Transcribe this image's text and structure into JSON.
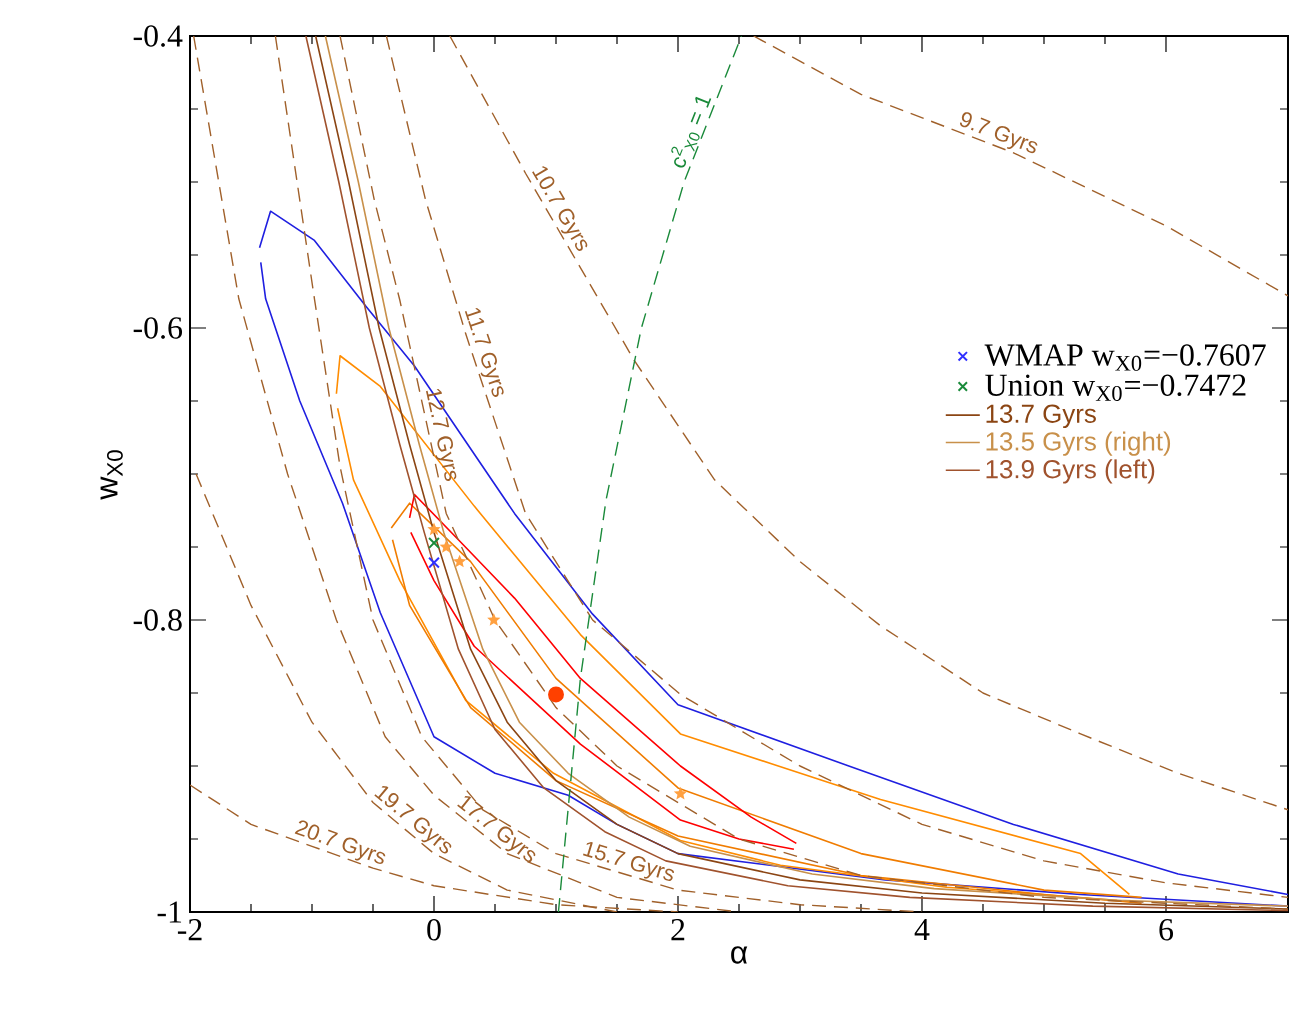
{
  "chart_data": {
    "type": "line",
    "xlabel": "α",
    "ylabel": "w$_{X0}$",
    "xlim": [
      -2,
      7
    ],
    "ylim": [
      -1,
      -0.4
    ],
    "xticks": [
      -2,
      0,
      2,
      4,
      6
    ],
    "yticks": [
      -1,
      -0.8,
      -0.6,
      -0.4
    ],
    "legend": "right",
    "line_style": "solid",
    "series": [
      {
        "type": "scatter",
        "marker": "cross",
        "name": "WMAP  w$_{X0}$=−0.7607",
        "color": "#3030ff",
        "x": [
          0
        ],
        "values": [
          -0.7607
        ]
      },
      {
        "type": "scatter",
        "marker": "cross",
        "name": "Union  w$_{X0}$=−0.7472",
        "color": "#1a8a3a",
        "x": [
          0
        ],
        "values": [
          -0.7472
        ]
      },
      {
        "color": "#1f1fe0",
        "x": [
          -1.43,
          -1.34,
          -0.98,
          -0.56,
          -0.16,
          0.66,
          1.3,
          2.0,
          3.4,
          4.75,
          6.1,
          7
        ],
        "values": [
          -0.545,
          -0.52,
          -0.54,
          -0.585,
          -0.626,
          -0.727,
          -0.796,
          -0.858,
          -0.9,
          -0.94,
          -0.974,
          -0.988
        ]
      },
      {
        "color": "#1f1fe0",
        "x": [
          -1.42,
          -1.38,
          -1.1,
          -0.75,
          -0.44,
          0,
          0.5,
          1.1,
          1.5,
          2.0,
          3.7,
          5.3,
          7
        ],
        "values": [
          -0.555,
          -0.58,
          -0.65,
          -0.72,
          -0.795,
          -0.88,
          -0.905,
          -0.92,
          -0.94,
          -0.96,
          -0.978,
          -0.988,
          -0.996
        ]
      },
      {
        "color": "#ff8c00",
        "x": [
          -0.8,
          -0.77,
          -0.44,
          0.33,
          1.2,
          2.02,
          3.66,
          5.3,
          5.7
        ],
        "values": [
          -0.645,
          -0.619,
          -0.64,
          -0.722,
          -0.81,
          -0.878,
          -0.923,
          -0.96,
          -0.988
        ]
      },
      {
        "color": "#ff8c00",
        "x": [
          -0.79,
          -0.66,
          -0.28,
          0.26,
          0.98,
          2.02,
          2.84,
          4.2,
          5.74
        ],
        "values": [
          -0.655,
          -0.704,
          -0.773,
          -0.855,
          -0.905,
          -0.951,
          -0.968,
          -0.983,
          -0.993
        ]
      },
      {
        "color": "#f07c00",
        "x": [
          -0.35,
          -0.2,
          0.3,
          1.0,
          2.0,
          3.5,
          5.0,
          5.8
        ],
        "values": [
          -0.737,
          -0.72,
          -0.76,
          -0.84,
          -0.915,
          -0.96,
          -0.985,
          -0.99
        ]
      },
      {
        "color": "#f07c00",
        "x": [
          -0.34,
          -0.2,
          0.3,
          1.0,
          2.0,
          3.5,
          5.0,
          5.8
        ],
        "values": [
          -0.745,
          -0.79,
          -0.86,
          -0.91,
          -0.948,
          -0.975,
          -0.988,
          -0.994
        ]
      },
      {
        "color": "#ff0000",
        "x": [
          -0.2,
          -0.16,
          0.2,
          0.66,
          1.2,
          2.02,
          2.6,
          2.97
        ],
        "values": [
          -0.73,
          -0.714,
          -0.745,
          -0.785,
          -0.84,
          -0.9,
          -0.935,
          -0.953
        ]
      },
      {
        "color": "#ff0000",
        "x": [
          -0.19,
          0,
          0.33,
          1.2,
          2.02,
          2.5,
          2.95
        ],
        "values": [
          -0.74,
          -0.773,
          -0.818,
          -0.885,
          -0.937,
          -0.95,
          -0.957
        ]
      },
      {
        "name": "13.7 Gyrs",
        "color": "#8b4513",
        "x": [
          -0.97,
          -0.7,
          -0.45,
          -0.2,
          0,
          0.3,
          0.6,
          1.0,
          1.5,
          2.0,
          3.0,
          4.0,
          5.5,
          7
        ],
        "values": [
          -0.4,
          -0.5,
          -0.6,
          -0.68,
          -0.74,
          -0.82,
          -0.87,
          -0.91,
          -0.94,
          -0.96,
          -0.978,
          -0.987,
          -0.994,
          -0.998
        ]
      },
      {
        "name": "13.5 Gyrs (right)",
        "color": "#c8904a",
        "x": [
          -0.89,
          -0.62,
          -0.37,
          -0.12,
          0.08,
          0.4,
          0.7,
          1.1,
          1.6,
          2.1,
          3.1,
          4.1,
          5.6,
          7
        ],
        "values": [
          -0.4,
          -0.5,
          -0.6,
          -0.68,
          -0.74,
          -0.82,
          -0.87,
          -0.905,
          -0.935,
          -0.955,
          -0.974,
          -0.984,
          -0.992,
          -0.996
        ]
      },
      {
        "name": "13.9 Gyrs (left)",
        "color": "#a0522d",
        "x": [
          -1.05,
          -0.78,
          -0.53,
          -0.28,
          -0.08,
          0.2,
          0.5,
          0.9,
          1.4,
          1.9,
          2.9,
          3.9,
          5.4,
          7
        ],
        "values": [
          -0.4,
          -0.5,
          -0.6,
          -0.68,
          -0.74,
          -0.82,
          -0.875,
          -0.915,
          -0.945,
          -0.965,
          -0.982,
          -0.99,
          -0.996,
          -0.999
        ]
      },
      {
        "name": "9.7 Gyrs",
        "color": "#a0602a",
        "line_style": "dashed",
        "x": [
          2.62,
          3.5,
          4.75,
          6,
          7
        ],
        "values": [
          -0.4,
          -0.44,
          -0.48,
          -0.53,
          -0.578
        ]
      },
      {
        "name": "10.7 Gyrs",
        "color": "#a0602a",
        "line_style": "dashed",
        "x": [
          0.13,
          0.75,
          1.64,
          2.3,
          3.0,
          3.66,
          4.5,
          5.3,
          6.1,
          7
        ],
        "values": [
          -0.4,
          -0.494,
          -0.622,
          -0.704,
          -0.76,
          -0.804,
          -0.85,
          -0.878,
          -0.905,
          -0.93
        ]
      },
      {
        "name": "11.7 Gyrs",
        "color": "#a0602a",
        "line_style": "dashed",
        "x": [
          -0.39,
          -0.07,
          0.26,
          0.75,
          1.3,
          2.02,
          3,
          4,
          5,
          6,
          7
        ],
        "values": [
          -0.4,
          -0.512,
          -0.604,
          -0.727,
          -0.8,
          -0.851,
          -0.9,
          -0.94,
          -0.965,
          -0.98,
          -0.99
        ]
      },
      {
        "name": "12.7 Gyrs",
        "color": "#a0602a",
        "line_style": "dashed",
        "x": [
          -0.77,
          -0.49,
          -0.28,
          0.1,
          0.5,
          1.0,
          1.5,
          2.5,
          3.5,
          5,
          7
        ],
        "values": [
          -0.4,
          -0.512,
          -0.581,
          -0.727,
          -0.8,
          -0.86,
          -0.9,
          -0.95,
          -0.975,
          -0.99,
          -0.998
        ]
      },
      {
        "name": "15.7 Gyrs",
        "color": "#a0602a",
        "line_style": "dashed",
        "x": [
          -1.3,
          -0.98,
          -0.77,
          -0.5,
          -0.1,
          0.4,
          1.0,
          2,
          3,
          4
        ],
        "values": [
          -0.4,
          -0.58,
          -0.695,
          -0.8,
          -0.88,
          -0.93,
          -0.96,
          -0.985,
          -0.995,
          -1.0
        ]
      },
      {
        "name": "17.7 Gyrs",
        "color": "#a0602a",
        "line_style": "dashed",
        "x": [
          -1.97,
          -1.6,
          -1.2,
          -0.8,
          -0.4,
          0,
          0.6,
          1.5,
          2.5
        ],
        "values": [
          -0.4,
          -0.58,
          -0.7,
          -0.8,
          -0.88,
          -0.92,
          -0.96,
          -0.99,
          -1.0
        ]
      },
      {
        "name": "19.7 Gyrs",
        "color": "#a0602a",
        "line_style": "dashed",
        "x": [
          -1.95,
          -1.5,
          -1,
          -0.5,
          0,
          0.6,
          1.5
        ],
        "values": [
          -0.7,
          -0.79,
          -0.87,
          -0.925,
          -0.96,
          -0.985,
          -1.0
        ]
      },
      {
        "name": "20.7 Gyrs",
        "color": "#a0602a",
        "line_style": "dashed",
        "x": [
          -2,
          -1.5,
          -1,
          -0.5,
          0,
          1,
          2
        ],
        "values": [
          -0.913,
          -0.94,
          -0.955,
          -0.97,
          -0.982,
          -0.995,
          -1.0
        ]
      },
      {
        "name": "c$^{2}$$_{X0}$ = 1",
        "color": "#1a8a3a",
        "line_style": "dashed",
        "x": [
          1.02,
          1.2,
          1.41,
          1.7,
          2.05,
          2.52
        ],
        "values": [
          -1.0,
          -0.84,
          -0.718,
          -0.6,
          -0.5,
          -0.4
        ]
      },
      {
        "type": "scatter",
        "marker": "star",
        "color": "#ffa040",
        "x": [
          0,
          0.1,
          0.21,
          0.49,
          2.02
        ],
        "values": [
          -0.738,
          -0.75,
          -0.76,
          -0.8,
          -0.919
        ]
      },
      {
        "type": "scatter",
        "marker": "circle",
        "color": "#ff4000",
        "x": [
          1.0
        ],
        "values": [
          -0.851
        ]
      }
    ]
  }
}
